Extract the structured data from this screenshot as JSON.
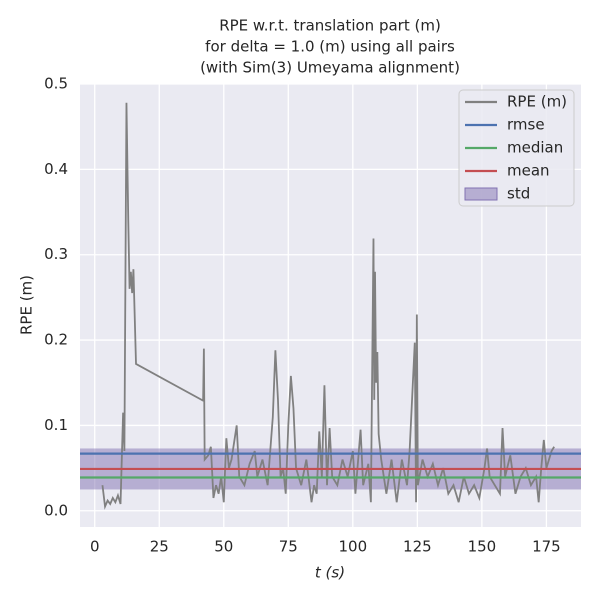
{
  "chart_data": {
    "type": "line",
    "title": [
      "RPE w.r.t. translation part (m)",
      "for delta = 1.0 (m) using all pairs",
      "(with Sim(3) Umeyama alignment)"
    ],
    "xlabel": "t (s)",
    "ylabel": "RPE (m)",
    "x": [
      3,
      4,
      5,
      6,
      7,
      8,
      9,
      10,
      11,
      11.5,
      12.3,
      13,
      13.5,
      14,
      14.5,
      15,
      16,
      42,
      42.3,
      42.6,
      44,
      45,
      46,
      47,
      48,
      49,
      50,
      51,
      52,
      53,
      55,
      56,
      58,
      60,
      62,
      63,
      65,
      67,
      69,
      70,
      71,
      72,
      73,
      74,
      75,
      76,
      77,
      78,
      80,
      82,
      84,
      85,
      86,
      87,
      88,
      89,
      90,
      91,
      92,
      94,
      96,
      98,
      100,
      101,
      103,
      104,
      106,
      107,
      108,
      108.3,
      108.6,
      109,
      109.5,
      110,
      111,
      113,
      115,
      117,
      119,
      121,
      122,
      124,
      124.5,
      124.8,
      125.2,
      127,
      129,
      131,
      133,
      135,
      137,
      139,
      141,
      143,
      145,
      147,
      149,
      151,
      152,
      153,
      155,
      157,
      158,
      159,
      161,
      163,
      165,
      167,
      169,
      171,
      172,
      173,
      174,
      175,
      177,
      178
    ],
    "series": [
      {
        "name": "RPE (m)",
        "color": "#808080",
        "values": [
          0.03,
          0.005,
          0.012,
          0.008,
          0.015,
          0.01,
          0.018,
          0.008,
          0.115,
          0.07,
          0.478,
          0.34,
          0.26,
          0.28,
          0.255,
          0.283,
          0.172,
          0.129,
          0.19,
          0.06,
          0.065,
          0.075,
          0.015,
          0.03,
          0.02,
          0.04,
          0.01,
          0.085,
          0.05,
          0.06,
          0.1,
          0.04,
          0.03,
          0.055,
          0.07,
          0.04,
          0.06,
          0.03,
          0.11,
          0.188,
          0.13,
          0.04,
          0.05,
          0.02,
          0.1,
          0.158,
          0.12,
          0.05,
          0.03,
          0.06,
          0.01,
          0.03,
          0.02,
          0.093,
          0.04,
          0.147,
          0.03,
          0.097,
          0.04,
          0.03,
          0.06,
          0.04,
          0.07,
          0.02,
          0.095,
          0.03,
          0.055,
          0.01,
          0.319,
          0.13,
          0.28,
          0.15,
          0.186,
          0.09,
          0.06,
          0.02,
          0.06,
          0.01,
          0.06,
          0.03,
          0.07,
          0.197,
          0.01,
          0.23,
          0.03,
          0.06,
          0.04,
          0.055,
          0.03,
          0.05,
          0.02,
          0.03,
          0.01,
          0.04,
          0.02,
          0.03,
          0.015,
          0.05,
          0.073,
          0.04,
          0.03,
          0.02,
          0.097,
          0.04,
          0.065,
          0.02,
          0.04,
          0.05,
          0.03,
          0.04,
          0.01,
          0.05,
          0.083,
          0.05,
          0.07,
          0.075
        ]
      }
    ],
    "stats": [
      {
        "name": "rmse",
        "color": "#4c72b0",
        "value": 0.067
      },
      {
        "name": "median",
        "color": "#55a868",
        "value": 0.039
      },
      {
        "name": "mean",
        "color": "#c44e52",
        "value": 0.049
      },
      {
        "name": "std",
        "color": "#8172b2",
        "value": 0.024
      }
    ],
    "xlim": [
      -5.7,
      188.4
    ],
    "xticks": [
      0,
      25,
      50,
      75,
      100,
      125,
      150,
      175
    ],
    "ylim": [
      -0.019,
      0.5
    ],
    "yticks": [
      {
        "value": 0,
        "label": "0.0"
      },
      0.1,
      0.2,
      0.3,
      0.4,
      0.5
    ],
    "grid": true,
    "legend": "upper right"
  }
}
